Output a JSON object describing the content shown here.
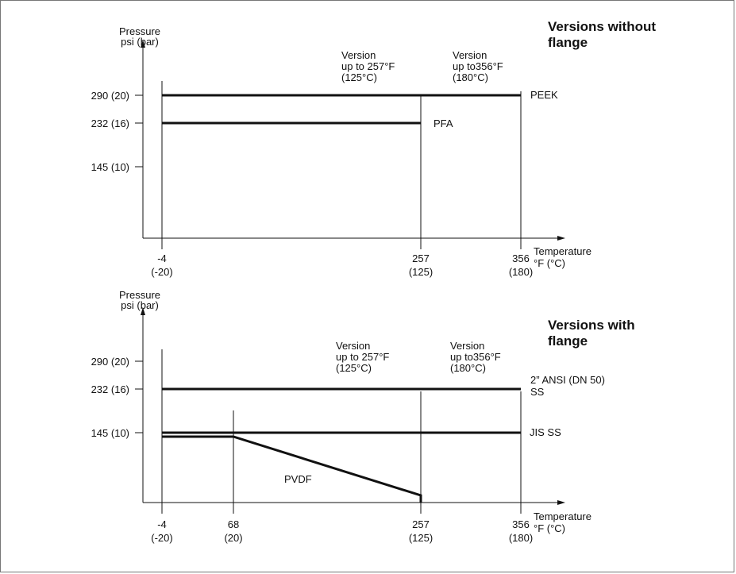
{
  "chart_data": [
    {
      "type": "line",
      "title": [
        "Versions without",
        "flange"
      ],
      "ylabel": [
        "Pressure",
        "psi (bar)"
      ],
      "xlabel": [
        "Temperature",
        "°F (°C)"
      ],
      "y_ticks": [
        "290 (20)",
        "232 (16)",
        "145 (10)"
      ],
      "y_tick_values": [
        290,
        232,
        145
      ],
      "x_ticks": [
        {
          "value": -4,
          "label": [
            "-4",
            "(-20)"
          ]
        },
        {
          "value": 257,
          "label": [
            "257",
            "(125)"
          ]
        },
        {
          "value": 356,
          "label": [
            "356",
            "(180)"
          ]
        }
      ],
      "annotations": [
        {
          "text": [
            "Version",
            "up to 257°F",
            "(125°C)"
          ]
        },
        {
          "text": [
            "Version",
            "up to356°F",
            "(180°C)"
          ]
        }
      ],
      "series": [
        {
          "name": [
            "PEEK"
          ],
          "x": [
            -4,
            356
          ],
          "y": [
            290,
            290
          ]
        },
        {
          "name": [
            "PFA"
          ],
          "x": [
            -4,
            257
          ],
          "y": [
            232,
            232
          ]
        }
      ]
    },
    {
      "type": "line",
      "title": [
        "Versions with",
        "flange"
      ],
      "ylabel": [
        "Pressure",
        "psi (bar)"
      ],
      "xlabel": [
        "Temperature",
        "°F (°C)"
      ],
      "y_ticks": [
        "290 (20)",
        "232 (16)",
        "145 (10)"
      ],
      "y_tick_values": [
        290,
        232,
        145
      ],
      "x_ticks": [
        {
          "value": -4,
          "label": [
            "-4",
            "(-20)"
          ]
        },
        {
          "value": 68,
          "label": [
            "68",
            "(20)"
          ]
        },
        {
          "value": 257,
          "label": [
            "257",
            "(125)"
          ]
        },
        {
          "value": 356,
          "label": [
            "356",
            "(180)"
          ]
        }
      ],
      "annotations": [
        {
          "text": [
            "Version",
            "up to 257°F",
            "(125°C)"
          ]
        },
        {
          "text": [
            "Version",
            "up to356°F",
            "(180°C)"
          ]
        }
      ],
      "series": [
        {
          "name": [
            "2” ANSI (DN 50)",
            "SS"
          ],
          "x": [
            -4,
            356
          ],
          "y": [
            232,
            232
          ]
        },
        {
          "name": [
            "JIS  SS"
          ],
          "x": [
            -4,
            356
          ],
          "y": [
            145,
            145
          ]
        },
        {
          "name": [
            "PVDF"
          ],
          "x": [
            -4,
            68,
            257,
            257
          ],
          "y": [
            138,
            138,
            0,
            -4
          ]
        }
      ]
    }
  ]
}
